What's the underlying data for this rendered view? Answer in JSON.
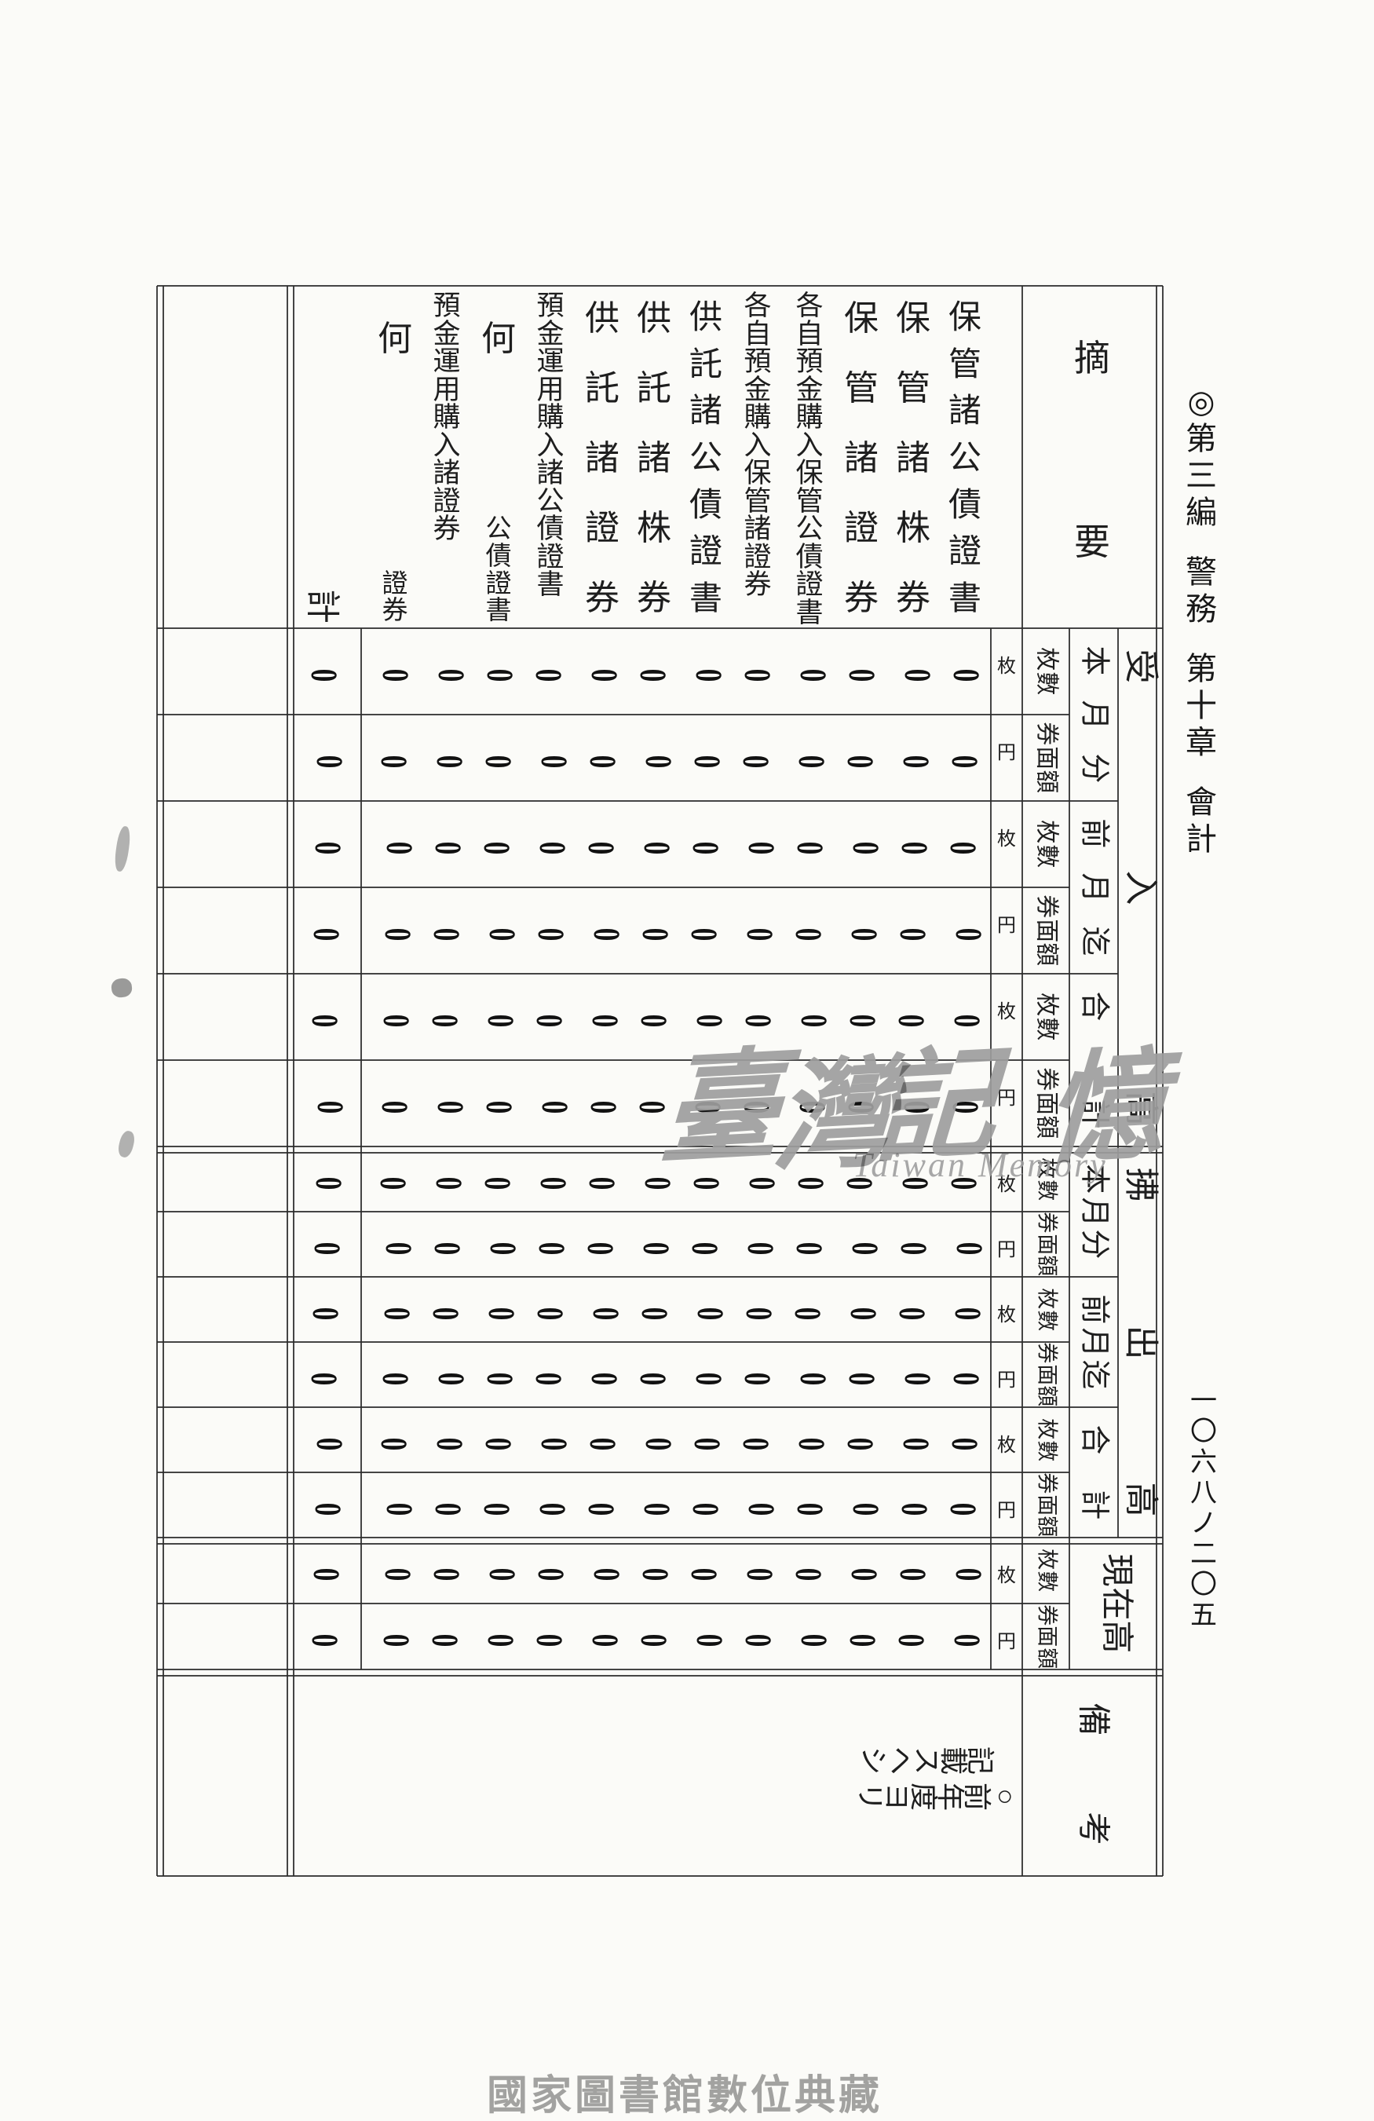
{
  "page": {
    "title": "◎第三編　警務　第十章　會計",
    "page_number": "一〇六八ノ二〇五",
    "caption": "國家圖書館數位典藏"
  },
  "watermark": {
    "cjk_chars": [
      "臺",
      "灣",
      "記",
      "憶"
    ],
    "latin": "Taiwan Memory"
  },
  "table": {
    "corner_label": "摘要",
    "total_label": "計",
    "remarks_label": "備考",
    "zero": "0",
    "unit_count": "枚",
    "unit_amount": "円",
    "subcolumns": [
      "枚數",
      "券面額"
    ],
    "sections": [
      {
        "label": "受入高",
        "groups": [
          {
            "label": "本月分"
          },
          {
            "label": "前月迄"
          },
          {
            "label": "合計"
          }
        ]
      },
      {
        "label": "拂出高",
        "groups": [
          {
            "label": "本月分"
          },
          {
            "label": "前月迄"
          },
          {
            "label": "合計"
          }
        ]
      },
      {
        "label": "現在高",
        "groups": [
          {
            "label": ""
          }
        ]
      }
    ],
    "items": [
      {
        "name": "保管諸公債證書",
        "layout": "spread"
      },
      {
        "name": "保管諸株券",
        "layout": "spread"
      },
      {
        "name": "保管諸證券",
        "layout": "spread"
      },
      {
        "name": "各自預金購入保管公債證書",
        "layout": "packed"
      },
      {
        "name": "各自預金購入保管諸證券",
        "layout": "packed"
      },
      {
        "name": "供託諸公債證書",
        "layout": "spread"
      },
      {
        "name": "供託諸株券",
        "layout": "spread"
      },
      {
        "name": "供託諸證券",
        "layout": "spread"
      },
      {
        "name": "預金運用購入諸公債證書",
        "layout": "packed"
      },
      {
        "name": "何 公債證書",
        "layout": "split"
      },
      {
        "name": "預金運用購入諸證券",
        "layout": "packed"
      },
      {
        "name": "何 證券",
        "layout": "split"
      }
    ],
    "note_rows": [
      "記載スヘシ",
      "○前年度ヨリ"
    ]
  }
}
